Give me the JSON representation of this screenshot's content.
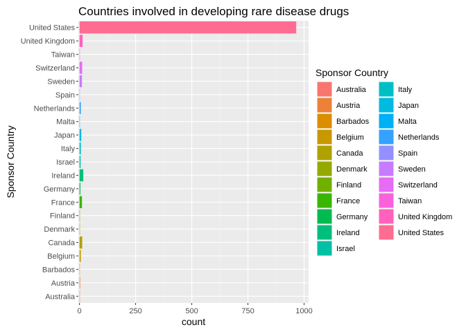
{
  "chart_data": {
    "type": "bar",
    "orientation": "horizontal",
    "title": "Countries involved in developing rare disease drugs",
    "xlabel": "count",
    "ylabel": "Sponsor Country",
    "xlim": [
      -5,
      1020
    ],
    "xticks": [
      0,
      250,
      500,
      750,
      1000
    ],
    "grid": true,
    "legend_title": "Sponsor Country",
    "legend_position": "right",
    "categories": [
      "Australia",
      "Austria",
      "Barbados",
      "Belgium",
      "Canada",
      "Denmark",
      "Finland",
      "France",
      "Germany",
      "Ireland",
      "Israel",
      "Italy",
      "Japan",
      "Malta",
      "Netherlands",
      "Spain",
      "Sweden",
      "Switzerland",
      "Taiwan",
      "United Kingdom",
      "United States"
    ],
    "values": [
      2,
      3,
      1,
      6,
      12,
      2,
      2,
      11,
      4,
      17,
      5,
      6,
      8,
      1,
      6,
      1,
      11,
      12,
      1,
      14,
      965
    ],
    "colors": [
      "#F8766D",
      "#EC8239",
      "#DB8E00",
      "#C79800",
      "#AFA100",
      "#96A900",
      "#72B000",
      "#39B600",
      "#00BB4E",
      "#00BF7D",
      "#00C1A3",
      "#00BFC4",
      "#00BAE0",
      "#00B0F6",
      "#35A2FF",
      "#9590FF",
      "#C77CFF",
      "#E76BF3",
      "#FA62DB",
      "#FF62BC",
      "#FF6C91"
    ]
  }
}
